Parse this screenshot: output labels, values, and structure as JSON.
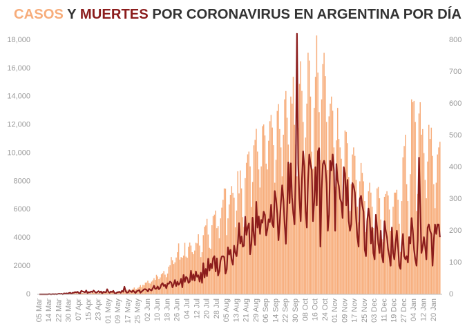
{
  "chart_data": {
    "type": "bar-line",
    "title": "CASOS Y MUERTES POR CORONAVIRUS EN ARGENTINA POR DÍA",
    "categories": [
      "05 Mar",
      null,
      null,
      null,
      null,
      null,
      null,
      null,
      "14 Mar",
      null,
      null,
      null,
      null,
      null,
      null,
      null,
      "22 Mar",
      null,
      null,
      null,
      null,
      null,
      null,
      null,
      "30 Mar",
      null,
      null,
      null,
      null,
      null,
      null,
      null,
      "07 Apr",
      null,
      null,
      null,
      null,
      null,
      null,
      null,
      "15 Apr",
      null,
      null,
      null,
      null,
      null,
      null,
      null,
      "23 Apr",
      null,
      null,
      null,
      null,
      null,
      null,
      null,
      "01 May",
      null,
      null,
      null,
      null,
      null,
      null,
      null,
      "09 May",
      null,
      null,
      null,
      null,
      null,
      null,
      null,
      "17 May",
      null,
      null,
      null,
      null,
      null,
      null,
      null,
      "25 May",
      null,
      null,
      null,
      null,
      null,
      null,
      null,
      "02 Jun",
      null,
      null,
      null,
      null,
      null,
      null,
      null,
      "10 Jun",
      null,
      null,
      null,
      null,
      null,
      null,
      null,
      "18 Jun",
      null,
      null,
      null,
      null,
      null,
      null,
      null,
      "26 Jun",
      null,
      null,
      null,
      null,
      null,
      null,
      null,
      "04 Jul",
      null,
      null,
      null,
      null,
      null,
      null,
      null,
      "12 Jul",
      null,
      null,
      null,
      null,
      null,
      null,
      null,
      "20 Jul",
      null,
      null,
      null,
      null,
      null,
      null,
      null,
      "28 Jul",
      null,
      null,
      null,
      null,
      null,
      null,
      null,
      "05 Aug",
      null,
      null,
      null,
      null,
      null,
      null,
      null,
      "13 Aug",
      null,
      null,
      null,
      null,
      null,
      null,
      null,
      "21 Aug",
      null,
      null,
      null,
      null,
      null,
      null,
      null,
      "29 Aug",
      null,
      null,
      null,
      null,
      null,
      null,
      null,
      "06 Sep",
      null,
      null,
      null,
      null,
      null,
      null,
      null,
      "14 Sep",
      null,
      null,
      null,
      null,
      null,
      null,
      null,
      "22 Sep",
      null,
      null,
      null,
      null,
      null,
      null,
      null,
      "30 Sep",
      null,
      null,
      null,
      null,
      null,
      null,
      null,
      "08 Oct",
      null,
      null,
      null,
      null,
      null,
      null,
      null,
      "16 Oct",
      null,
      null,
      null,
      null,
      null,
      null,
      null,
      "24 Oct",
      null,
      null,
      null,
      null,
      null,
      null,
      null,
      "01 Nov",
      null,
      null,
      null,
      null,
      null,
      null,
      null,
      "09 Nov",
      null,
      null,
      null,
      null,
      null,
      null,
      null,
      "17 Nov",
      null,
      null,
      null,
      null,
      null,
      null,
      null,
      "25 Nov",
      null,
      null,
      null,
      null,
      null,
      null,
      null,
      "03 Dec",
      null,
      null,
      null,
      null,
      null,
      null,
      null,
      "11 Dec",
      null,
      null,
      null,
      null,
      null,
      null,
      null,
      "19 Dec",
      null,
      null,
      null,
      null,
      null,
      null,
      null,
      "27 Dec",
      null,
      null,
      null,
      null,
      null,
      null,
      null,
      "04 Jan",
      null,
      null,
      null,
      null,
      null,
      null,
      null,
      "12 Jan",
      null,
      null,
      null,
      null,
      null,
      null,
      null,
      "20 Jan",
      null,
      null,
      null,
      null,
      null
    ],
    "series": [
      {
        "name": "CASOS",
        "color": "#f7ad7b",
        "kind": "bar",
        "values": [
          1,
          0,
          2,
          5,
          3,
          4,
          2,
          10,
          12,
          19,
          3,
          14,
          31,
          17,
          41,
          25,
          67,
          35,
          86,
          55,
          101,
          75,
          88,
          91,
          57,
          55,
          101,
          70,
          134,
          81,
          92,
          74,
          88,
          63,
          104,
          98,
          113,
          69,
          75,
          105,
          123,
          143,
          87,
          112,
          131,
          129,
          149,
          157,
          108,
          111,
          96,
          144,
          104,
          148,
          124,
          166,
          135,
          147,
          129,
          128,
          152,
          112,
          143,
          171,
          158,
          165,
          163,
          240,
          202,
          224,
          240,
          317,
          259,
          217,
          204,
          307,
          399,
          482,
          350,
          386,
          460,
          533,
          655,
          504,
          669,
          645,
          825,
          837,
          961,
          792,
          758,
          900,
          983,
          1141,
          1021,
          1382,
          1265,
          1074,
          1196,
          1416,
          1501,
          1648,
          1394,
          1208,
          1470,
          1958,
          2060,
          2635,
          2413,
          2146,
          2262,
          2606,
          2979,
          3604,
          2456,
          2632,
          2590,
          2744,
          3645,
          2667,
          2590,
          3367,
          3663,
          3449,
          2979,
          2845,
          3099,
          3645,
          3604,
          4250,
          3449,
          2632,
          2979,
          4190,
          4783,
          4878,
          5344,
          4231,
          3292,
          3223,
          4890,
          5527,
          5641,
          5929,
          4688,
          4831,
          3967,
          5376,
          6134,
          6693,
          7498,
          7482,
          4190,
          5379,
          6365,
          7043,
          7663,
          7187,
          6840,
          4740,
          5930,
          8713,
          7147,
          8771,
          7498,
          5465,
          4767,
          8225,
          9309,
          9908,
          10104,
          9056,
          6180,
          7956,
          10550,
          10933,
          11717,
          10104,
          8841,
          7560,
          9056,
          11905,
          12026,
          11245,
          9253,
          8841,
          10874,
          12259,
          12701,
          11807,
          10561,
          7900,
          9523,
          12982,
          13467,
          11700,
          10400,
          8350,
          11300,
          13800,
          14392,
          12500,
          10600,
          9250,
          14001,
          13500,
          15400,
          12000,
          10600,
          8350,
          11800,
          14900,
          16500,
          14400,
          12200,
          9100,
          11100,
          13500,
          17100,
          16550,
          14000,
          10100,
          8900,
          13200,
          15400,
          18326,
          15700,
          12900,
          9500,
          13800,
          16300,
          17096,
          15450,
          12200,
          8800,
          12600,
          13500,
          14000,
          13000,
          10400,
          7600,
          10900,
          13200,
          11000,
          10400,
          9600,
          6100,
          9000,
          11600,
          11500,
          10700,
          8300,
          5900,
          7800,
          9900,
          10400,
          9800,
          8100,
          6200,
          5100,
          8000,
          9300,
          8600,
          8000,
          6600,
          4400,
          5400,
          7300,
          7900,
          7200,
          6200,
          4700,
          3800,
          5000,
          7500,
          7600,
          6800,
          5300,
          3900,
          3700,
          6900,
          7100,
          7300,
          7000,
          6000,
          4500,
          3200,
          6200,
          7200,
          7200,
          7400,
          6700,
          5000,
          3000,
          6600,
          9700,
          10500,
          11300,
          7800,
          6600,
          4100,
          8500,
          13800,
          13600,
          13700,
          12200,
          5900,
          7100,
          12800,
          13600,
          11300,
          11700,
          10000,
          8100,
          6800,
          9400,
          12000,
          11000,
          11800,
          9800,
          7800,
          6100,
          7900,
          9900,
          10400,
          10800
        ]
      },
      {
        "name": "MUERTES",
        "color": "#8b1c1c",
        "kind": "line",
        "axis": "y2",
        "values": [
          0,
          0,
          0,
          0,
          0,
          0,
          0,
          0,
          1,
          0,
          0,
          1,
          0,
          1,
          0,
          1,
          2,
          1,
          2,
          0,
          3,
          2,
          3,
          2,
          4,
          5,
          2,
          5,
          5,
          7,
          6,
          8,
          4,
          3,
          11,
          9,
          8,
          6,
          12,
          4,
          7,
          6,
          9,
          7,
          12,
          8,
          5,
          7,
          10,
          6,
          9,
          3,
          8,
          7,
          6,
          16,
          8,
          5,
          9,
          7,
          11,
          4,
          2,
          6,
          7,
          8,
          5,
          11,
          8,
          24,
          10,
          5,
          6,
          13,
          9,
          7,
          12,
          8,
          4,
          10,
          11,
          13,
          5,
          9,
          12,
          16,
          16,
          14,
          9,
          17,
          14,
          12,
          19,
          27,
          17,
          18,
          25,
          16,
          20,
          31,
          35,
          26,
          30,
          19,
          34,
          33,
          40,
          37,
          22,
          32,
          45,
          26,
          40,
          30,
          35,
          49,
          22,
          61,
          39,
          55,
          51,
          36,
          40,
          74,
          45,
          63,
          43,
          72,
          55,
          60,
          40,
          68,
          36,
          98,
          53,
          80,
          57,
          112,
          75,
          96,
          82,
          114,
          120,
          72,
          113,
          59,
          73,
          107,
          119,
          120,
          117,
          65,
          78,
          148,
          125,
          140,
          107,
          93,
          153,
          131,
          120,
          159,
          224,
          160,
          182,
          150,
          153,
          244,
          187,
          211,
          223,
          126,
          158,
          241,
          185,
          155,
          291,
          210,
          245,
          190,
          234,
          225,
          260,
          250,
          185,
          205,
          236,
          227,
          282,
          222,
          211,
          325,
          300,
          255,
          170,
          225,
          290,
          343,
          298,
          221,
          159,
          265,
          415,
          287,
          412,
          305,
          256,
          220,
          380,
          820,
          410,
          300,
          230,
          360,
          450,
          400,
          260,
          210,
          360,
          440,
          410,
          390,
          230,
          290,
          400,
          280,
          450,
          460,
          150,
          330,
          410,
          420,
          405,
          350,
          200,
          250,
          420,
          390,
          440,
          390,
          200,
          410,
          360,
          340,
          300,
          290,
          240,
          400,
          380,
          280,
          360,
          230,
          200,
          220,
          350,
          340,
          320,
          240,
          180,
          150,
          300,
          310,
          280,
          260,
          140,
          120,
          230,
          270,
          240,
          160,
          210,
          130,
          110,
          250,
          210,
          160,
          130,
          200,
          120,
          100,
          230,
          200,
          180,
          140,
          120,
          90,
          210,
          130,
          110,
          160,
          200,
          150,
          90,
          80,
          150,
          190,
          120,
          110,
          120,
          100,
          180,
          160,
          240,
          200,
          140,
          110,
          90,
          170,
          430,
          280,
          130,
          150,
          180,
          150,
          110,
          210,
          220,
          200,
          190,
          90,
          170,
          220,
          190,
          220,
          220,
          180
        ]
      }
    ],
    "ylim": [
      0,
      18000
    ],
    "yticks": [
      0,
      2000,
      4000,
      6000,
      8000,
      {
        "value": 10000,
        "label": "10,000"
      },
      {
        "value": 12000,
        "label": "12,000"
      },
      {
        "value": 14000,
        "label": "14,000"
      },
      {
        "value": 16000,
        "label": "16,000"
      },
      {
        "value": 18000,
        "label": "18,000"
      }
    ],
    "y2lim": [
      0,
      800
    ],
    "y2ticks": [
      0,
      100,
      200,
      300,
      400,
      500,
      600,
      700,
      800
    ],
    "grid": false
  }
}
